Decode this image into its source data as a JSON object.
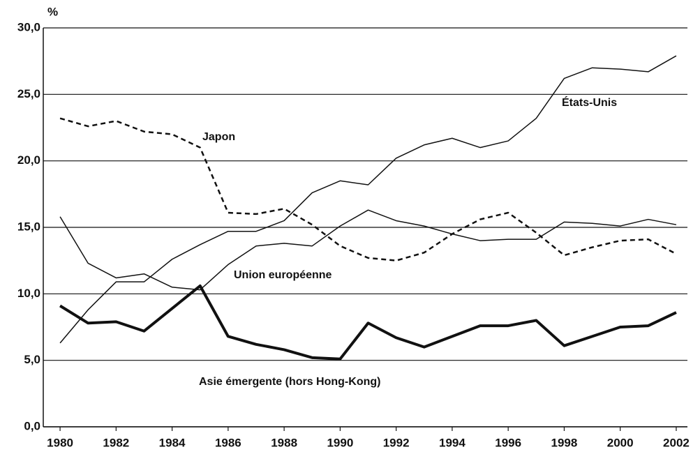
{
  "chart_data": {
    "type": "line",
    "y_label": "%",
    "x": [
      1980,
      1981,
      1982,
      1983,
      1984,
      1985,
      1986,
      1987,
      1988,
      1989,
      1990,
      1991,
      1992,
      1993,
      1994,
      1995,
      1996,
      1997,
      1998,
      1999,
      2000,
      2001,
      2002
    ],
    "series": [
      {
        "name": "États-Unis",
        "color": "#111111",
        "style": "thin",
        "values": [
          6.3,
          8.8,
          10.9,
          10.9,
          12.6,
          13.7,
          14.7,
          14.7,
          15.5,
          17.6,
          18.5,
          18.2,
          20.2,
          21.2,
          21.7,
          21.0,
          21.5,
          23.2,
          26.2,
          27.0,
          26.9,
          26.7,
          27.9
        ]
      },
      {
        "name": "Japon",
        "color": "#111111",
        "style": "dashed",
        "values": [
          23.2,
          22.6,
          23.0,
          22.2,
          22.0,
          21.0,
          16.1,
          16.0,
          16.4,
          15.2,
          13.6,
          12.7,
          12.5,
          13.1,
          14.5,
          15.6,
          16.1,
          14.6,
          12.9,
          13.5,
          14.0,
          14.1,
          13.0
        ]
      },
      {
        "name": "Union européenne",
        "color": "#111111",
        "style": "thin",
        "values": [
          15.8,
          12.3,
          11.2,
          11.5,
          10.5,
          10.3,
          12.2,
          13.6,
          13.8,
          13.6,
          15.1,
          16.3,
          15.5,
          15.1,
          14.5,
          14.0,
          14.1,
          14.1,
          15.4,
          15.3,
          15.1,
          15.6,
          15.2
        ]
      },
      {
        "name": "Asie émergente (hors Hong-Kong)",
        "color": "#111111",
        "style": "thick",
        "values": [
          9.1,
          7.8,
          7.9,
          7.2,
          8.9,
          10.6,
          6.8,
          6.2,
          5.8,
          5.2,
          5.1,
          7.8,
          6.7,
          6.0,
          6.8,
          7.6,
          7.6,
          8.0,
          6.1,
          6.8,
          7.5,
          7.6,
          8.6
        ]
      }
    ],
    "xlim": [
      1979.4,
      2002.4
    ],
    "xticks": [
      1980,
      1982,
      1984,
      1986,
      1988,
      1990,
      1992,
      1994,
      1996,
      1998,
      2000,
      2002
    ],
    "ylim": [
      0,
      30
    ],
    "yticks": [
      {
        "value": 0,
        "label": "0,0"
      },
      {
        "value": 5,
        "label": "5,0"
      },
      {
        "value": 10,
        "label": "10,0"
      },
      {
        "value": 15,
        "label": "15,0"
      },
      {
        "value": 20,
        "label": "20,0"
      },
      {
        "value": 25,
        "label": "25,0"
      },
      {
        "value": 30,
        "label": "30,0"
      }
    ],
    "grid": true
  }
}
